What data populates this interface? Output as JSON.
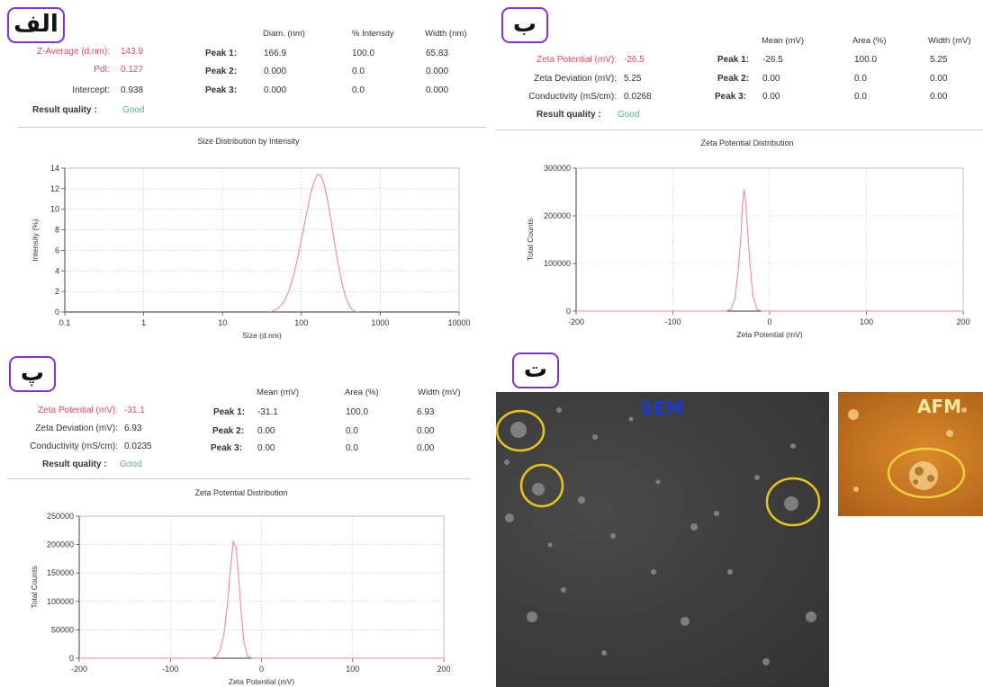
{
  "panels": {
    "alef": {
      "tag": "الف",
      "stats": [
        {
          "label": "Z-Average (d.nm):",
          "value": "143.9",
          "tone": "red"
        },
        {
          "label": "PdI:",
          "value": "0.127",
          "tone": "red"
        },
        {
          "label": "Intercept:",
          "value": "0.938",
          "tone": "normal"
        }
      ],
      "quality_label": "Result quality :",
      "quality_value": "Good",
      "headers": [
        "Diam. (nm)",
        "% Intensity",
        "Width (nm)"
      ],
      "peaks": [
        {
          "label": "Peak 1:",
          "values": [
            "166.9",
            "100.0",
            "65.83"
          ]
        },
        {
          "label": "Peak 2:",
          "values": [
            "0.000",
            "0.0",
            "0.000"
          ]
        },
        {
          "label": "Peak 3:",
          "values": [
            "0.000",
            "0.0",
            "0.000"
          ]
        }
      ]
    },
    "be": {
      "tag": "ب",
      "stats": [
        {
          "label": "Zeta Potential (mV):",
          "value": "-26.5",
          "tone": "red"
        },
        {
          "label": "Zeta Deviation (mV):",
          "value": "5.25",
          "tone": "normal"
        },
        {
          "label": "Conductivity (mS/cm):",
          "value": "0.0268",
          "tone": "normal"
        }
      ],
      "quality_label": "Result quality :",
      "quality_value": "Good",
      "headers": [
        "Mean (mV)",
        "Area (%)",
        "Width (mV)"
      ],
      "peaks": [
        {
          "label": "Peak 1:",
          "values": [
            "-26.5",
            "100.0",
            "5.25"
          ]
        },
        {
          "label": "Peak 2:",
          "values": [
            "0.00",
            "0.0",
            "0.00"
          ]
        },
        {
          "label": "Peak 3:",
          "values": [
            "0.00",
            "0.0",
            "0.00"
          ]
        }
      ]
    },
    "pe": {
      "tag": "پ",
      "stats": [
        {
          "label": "Zeta Potential (mV):",
          "value": "-31.1",
          "tone": "red"
        },
        {
          "label": "Zeta Deviation (mV):",
          "value": "6.93",
          "tone": "normal"
        },
        {
          "label": "Conductivity (mS/cm):",
          "value": "0.0235",
          "tone": "normal"
        }
      ],
      "quality_label": "Result quality :",
      "quality_value": "Good",
      "headers": [
        "Mean (mV)",
        "Area (%)",
        "Width (mV)"
      ],
      "peaks": [
        {
          "label": "Peak 1:",
          "values": [
            "-31.1",
            "100.0",
            "6.93"
          ]
        },
        {
          "label": "Peak 2:",
          "values": [
            "0.00",
            "0.0",
            "0.00"
          ]
        },
        {
          "label": "Peak 3:",
          "values": [
            "0.00",
            "0.0",
            "0.00"
          ]
        }
      ]
    },
    "te": {
      "tag": "ت",
      "sem_label": "SEM",
      "afm_label": "AFM"
    }
  },
  "colors": {
    "curve": "#f08a9a",
    "tag_border": "#8a2be2",
    "highlight_circle": "#e6c619",
    "sem_label": "#1a3ccc",
    "afm_label": "#f3e9a0"
  },
  "chart_data": [
    {
      "type": "line",
      "title": "Size Distribution by Intensity",
      "xlabel": "Size (d.nm)",
      "ylabel": "Intensity (%)",
      "x_scale": "log",
      "xlim": [
        0.1,
        10000
      ],
      "ylim": [
        0,
        14
      ],
      "x_ticks": [
        "0.1",
        "1",
        "10",
        "100",
        "1000",
        "10000"
      ],
      "y_ticks": [
        "0",
        "2",
        "4",
        "6",
        "8",
        "10",
        "12",
        "14"
      ],
      "grid": true,
      "series": [
        {
          "x": [
            40,
            50,
            60,
            70,
            80,
            90,
            100,
            115,
            130,
            145,
            160,
            175,
            190,
            210,
            230,
            260,
            290,
            330,
            370,
            420,
            470,
            520
          ],
          "y": [
            0,
            0.3,
            1.0,
            2.1,
            3.6,
            5.3,
            7.0,
            9.4,
            11.4,
            12.7,
            13.4,
            13.3,
            12.7,
            11.3,
            9.6,
            7.0,
            4.8,
            2.7,
            1.3,
            0.4,
            0.1,
            0
          ]
        }
      ]
    },
    {
      "type": "line",
      "title": "Zeta Potential Distribution",
      "xlabel": "Zeta Potential (mV)",
      "ylabel": "Total Counts",
      "xlim": [
        -200,
        200
      ],
      "ylim": [
        0,
        300000
      ],
      "x_ticks": [
        "-200",
        "-100",
        "0",
        "100",
        "200"
      ],
      "y_ticks": [
        "0",
        "100000",
        "200000",
        "300000"
      ],
      "grid": true,
      "series": [
        {
          "x": [
            -200,
            -45,
            -40,
            -36,
            -33,
            -30,
            -28,
            -26.5,
            -25,
            -23,
            -20,
            -17,
            -13,
            -8,
            200
          ],
          "y": [
            0,
            0,
            4000,
            25000,
            75000,
            150000,
            225000,
            255000,
            235000,
            175000,
            90000,
            30000,
            4000,
            0,
            0
          ]
        }
      ]
    },
    {
      "type": "line",
      "title": "Zeta Potential Distribution",
      "xlabel": "Zeta Potential (mV)",
      "ylabel": "Total Counts",
      "xlim": [
        -200,
        200
      ],
      "ylim": [
        0,
        250000
      ],
      "x_ticks": [
        "-200",
        "-100",
        "0",
        "100",
        "200"
      ],
      "y_ticks": [
        "0",
        "50000",
        "100000",
        "150000",
        "200000",
        "250000"
      ],
      "grid": true,
      "series": [
        {
          "x": [
            -200,
            -55,
            -50,
            -45,
            -41,
            -37,
            -34,
            -31,
            -28,
            -25,
            -22,
            -19,
            -15,
            -10,
            200
          ],
          "y": [
            0,
            0,
            2000,
            15000,
            45000,
            100000,
            160000,
            205000,
            195000,
            140000,
            75000,
            25000,
            3000,
            0,
            0
          ]
        }
      ]
    }
  ]
}
